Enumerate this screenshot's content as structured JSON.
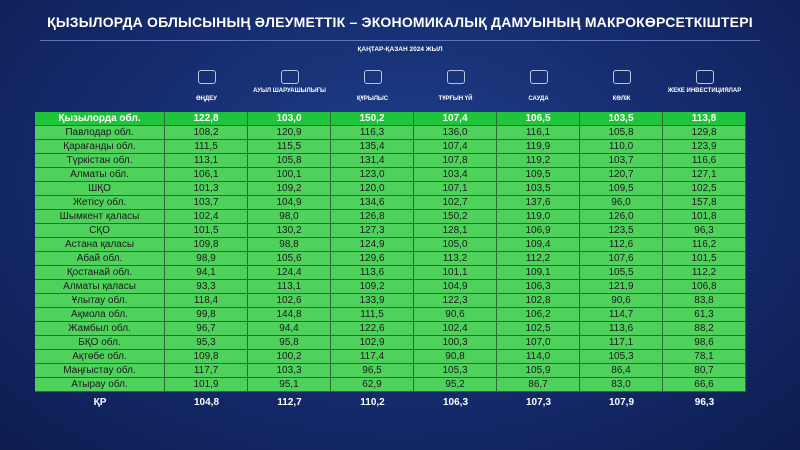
{
  "title": "ҚЫЗЫЛОРДА ОБЛЫСЫНЫҢ ӘЛЕУМЕТТІК – ЭКОНОМИКАЛЫҚ ДАМУЫНЫҢ МАКРОКӨРСЕТКІШТЕРІ",
  "subtitle": "ҚАҢТАР-ҚАЗАН 2024 ЖЫЛ",
  "columns": [
    "ӨҢДЕУ",
    "АУЫЛ ШАРУАШЫЛЫҒЫ",
    "ҚҰРЫЛЫС",
    "ТҰРҒЫН ҮЙ",
    "САУДА",
    "КӨЛІК",
    "ЖЕКЕ ИНВЕСТИЦИЯЛАР"
  ],
  "rows": [
    {
      "name": "Қызылорда обл.",
      "values": [
        "122,8",
        "103,0",
        "150,2",
        "107,4",
        "106,5",
        "103,5",
        "113,8"
      ]
    },
    {
      "name": "Павлодар обл.",
      "values": [
        "108,2",
        "120,9",
        "116,3",
        "136,0",
        "116,1",
        "105,8",
        "129,8"
      ]
    },
    {
      "name": "Қарағанды обл.",
      "values": [
        "111,5",
        "115,5",
        "135,4",
        "107,4",
        "119,9",
        "110,0",
        "123,9"
      ]
    },
    {
      "name": "Түркістан обл.",
      "values": [
        "113,1",
        "105,8",
        "131,4",
        "107,8",
        "119,2",
        "103,7",
        "116,6"
      ]
    },
    {
      "name": "Алматы обл.",
      "values": [
        "106,1",
        "100,1",
        "123,0",
        "103,4",
        "109,5",
        "120,7",
        "127,1"
      ]
    },
    {
      "name": "ШҚО",
      "values": [
        "101,3",
        "109,2",
        "120,0",
        "107,1",
        "103,5",
        "109,5",
        "102,5"
      ]
    },
    {
      "name": "Жетісу обл.",
      "values": [
        "103,7",
        "104,9",
        "134,6",
        "102,7",
        "137,6",
        "96,0",
        "157,8"
      ]
    },
    {
      "name": "Шымкент қаласы",
      "values": [
        "102,4",
        "98,0",
        "126,8",
        "150,2",
        "119,0",
        "126,0",
        "101,8"
      ]
    },
    {
      "name": "СҚО",
      "values": [
        "101,5",
        "130,2",
        "127,3",
        "128,1",
        "106,9",
        "123,5",
        "96,3"
      ]
    },
    {
      "name": "Астана қаласы",
      "values": [
        "109,8",
        "98,8",
        "124,9",
        "105,0",
        "109,4",
        "112,6",
        "116,2"
      ]
    },
    {
      "name": "Абай обл.",
      "values": [
        "98,9",
        "105,6",
        "129,6",
        "113,2",
        "112,2",
        "107,6",
        "101,5"
      ]
    },
    {
      "name": "Қостанай обл.",
      "values": [
        "94,1",
        "124,4",
        "113,6",
        "101,1",
        "109,1",
        "105,5",
        "112,2"
      ]
    },
    {
      "name": "Алматы қаласы",
      "values": [
        "93,3",
        "113,1",
        "109,2",
        "104,9",
        "106,3",
        "121,9",
        "106,8"
      ]
    },
    {
      "name": "Ұлытау обл.",
      "values": [
        "118,4",
        "102,6",
        "133,9",
        "122,3",
        "102,8",
        "90,6",
        "83,8"
      ]
    },
    {
      "name": "Ақмола обл.",
      "values": [
        "99,8",
        "144,8",
        "111,5",
        "90,6",
        "106,2",
        "114,7",
        "61,3"
      ]
    },
    {
      "name": "Жамбыл обл.",
      "values": [
        "96,7",
        "94,4",
        "122,6",
        "102,4",
        "102,5",
        "113,6",
        "88,2"
      ]
    },
    {
      "name": "БҚО обл.",
      "values": [
        "95,3",
        "95,8",
        "102,9",
        "100,3",
        "107,0",
        "117,1",
        "98,6"
      ]
    },
    {
      "name": "Ақтөбе обл.",
      "values": [
        "109,8",
        "100,2",
        "117,4",
        "90,8",
        "114,0",
        "105,3",
        "78,1"
      ]
    },
    {
      "name": "Маңғыстау обл.",
      "values": [
        "117,7",
        "103,3",
        "96,5",
        "105,3",
        "105,9",
        "86,4",
        "80,7"
      ]
    },
    {
      "name": "Атырау обл.",
      "values": [
        "101,9",
        "95,1",
        "62,9",
        "95,2",
        "86,7",
        "83,0",
        "66,6"
      ]
    }
  ],
  "total": {
    "name": "ҚР",
    "values": [
      "104,8",
      "112,7",
      "110,2",
      "106,3",
      "107,3",
      "107,9",
      "96,3"
    ]
  }
}
